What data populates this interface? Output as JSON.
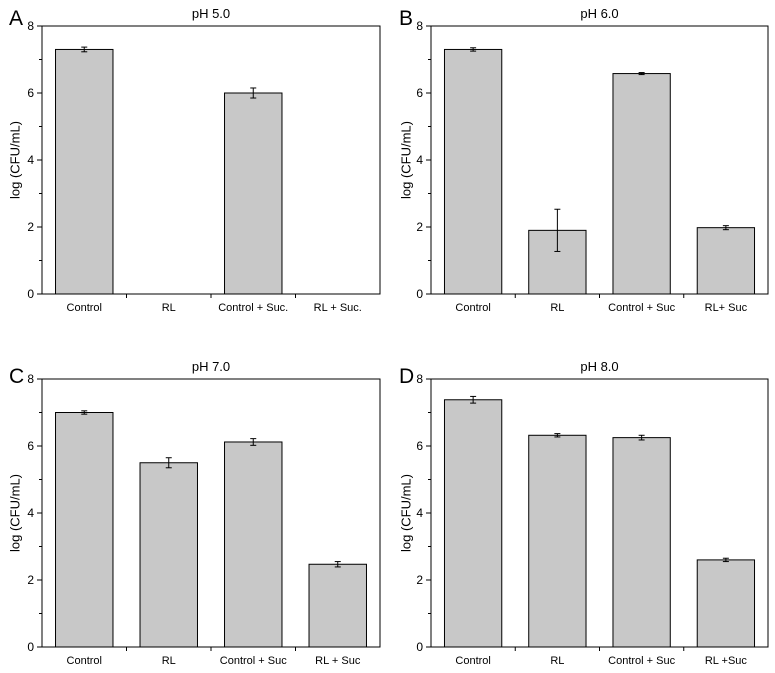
{
  "chart_data": [
    {
      "type": "bar",
      "panel_label": "A",
      "title": "pH 5.0",
      "ylabel": "log (CFU/mL)",
      "ylim": [
        0,
        8
      ],
      "yticks": [
        0,
        2,
        4,
        6,
        8
      ],
      "categories": [
        "Control",
        "RL",
        "Control + Suc.",
        "RL + Suc."
      ],
      "values": [
        7.3,
        0,
        6.0,
        0
      ],
      "errors": [
        0.07,
        0,
        0.15,
        0
      ]
    },
    {
      "type": "bar",
      "panel_label": "B",
      "title": "pH 6.0",
      "ylabel": "log (CFU/mL)",
      "ylim": [
        0,
        8
      ],
      "yticks": [
        0,
        2,
        4,
        6,
        8
      ],
      "categories": [
        "Control",
        "RL",
        "Control + Suc",
        "RL+ Suc"
      ],
      "values": [
        7.3,
        1.9,
        6.58,
        1.98
      ],
      "errors": [
        0.05,
        0.63,
        0.03,
        0.06
      ]
    },
    {
      "type": "bar",
      "panel_label": "C",
      "title": "pH 7.0",
      "ylabel": "log (CFU/mL)",
      "ylim": [
        0,
        8
      ],
      "yticks": [
        0,
        2,
        4,
        6,
        8
      ],
      "categories": [
        "Control",
        "RL",
        "Control + Suc",
        "RL + Suc"
      ],
      "values": [
        7.0,
        5.5,
        6.12,
        2.47
      ],
      "errors": [
        0.05,
        0.15,
        0.1,
        0.08
      ]
    },
    {
      "type": "bar",
      "panel_label": "D",
      "title": "pH 8.0",
      "ylabel": "log (CFU/mL)",
      "ylim": [
        0,
        8
      ],
      "yticks": [
        0,
        2,
        4,
        6,
        8
      ],
      "categories": [
        "Control",
        "RL",
        "Control + Suc",
        "RL +Suc"
      ],
      "values": [
        7.38,
        6.32,
        6.25,
        2.6
      ],
      "errors": [
        0.1,
        0.05,
        0.07,
        0.05
      ]
    }
  ]
}
